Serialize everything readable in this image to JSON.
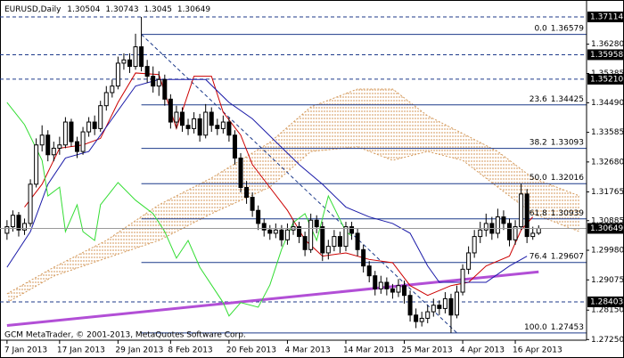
{
  "chart_data": {
    "type": "candlestick",
    "title": "EURUSD,Daily",
    "footer": "GCM MetaTrader, © 2001-2013, MetaQuotes Software Corp.",
    "up_color": "#ffffff",
    "down_color": "#000000",
    "wick_color": "#000000",
    "open": [
      1.305,
      1.307,
      1.3105,
      1.306,
      1.308,
      1.32,
      1.332,
      1.335,
      1.329,
      1.331,
      1.332,
      1.339,
      1.333,
      1.33,
      1.336,
      1.339,
      1.337,
      1.344,
      1.348,
      1.35,
      1.357,
      1.358,
      1.356,
      1.362,
      1.356,
      1.353,
      1.35,
      1.352,
      1.346,
      1.339,
      1.342,
      1.338,
      1.337,
      1.34,
      1.335,
      1.342,
      1.338,
      1.337,
      1.339,
      1.335,
      1.328,
      1.319,
      1.316,
      1.312,
      1.308,
      1.306,
      1.305,
      1.306,
      1.303,
      1.306,
      1.307,
      1.304,
      1.3,
      1.309,
      1.307,
      1.299,
      1.301,
      1.304,
      1.301,
      1.307,
      1.305,
      1.3,
      1.295,
      1.292,
      1.288,
      1.29,
      1.288,
      1.287,
      1.289,
      1.286,
      1.28,
      1.278,
      1.279,
      1.281,
      1.283,
      1.282,
      1.285,
      1.28,
      1.287,
      1.294,
      1.299,
      1.304,
      1.306,
      1.308,
      1.305,
      1.31,
      1.308,
      1.303,
      1.307,
      1.317,
      1.304,
      1.30504
    ],
    "high": [
      1.309,
      1.312,
      1.3115,
      1.3095,
      1.3215,
      1.334,
      1.338,
      1.3365,
      1.333,
      1.3345,
      1.3405,
      1.34,
      1.3345,
      1.3375,
      1.3405,
      1.341,
      1.3455,
      1.35,
      1.352,
      1.359,
      1.36,
      1.36,
      1.366,
      1.37114,
      1.358,
      1.356,
      1.3545,
      1.3535,
      1.3475,
      1.344,
      1.3435,
      1.34,
      1.342,
      1.3415,
      1.3445,
      1.3435,
      1.34,
      1.341,
      1.3405,
      1.3365,
      1.3295,
      1.321,
      1.3175,
      1.3135,
      1.3095,
      1.3075,
      1.308,
      1.3075,
      1.308,
      1.309,
      1.3085,
      1.3055,
      1.311,
      1.3105,
      1.3085,
      1.303,
      1.306,
      1.3055,
      1.3085,
      1.3085,
      1.3065,
      1.3015,
      1.2965,
      1.2935,
      1.292,
      1.2915,
      1.2895,
      1.291,
      1.2905,
      1.2875,
      1.282,
      1.281,
      1.283,
      1.285,
      1.2845,
      1.287,
      1.2865,
      1.289,
      1.2955,
      1.301,
      1.306,
      1.3085,
      1.311,
      1.31,
      1.3125,
      1.312,
      1.3095,
      1.309,
      1.3202,
      1.3185,
      1.307,
      1.30743
    ],
    "low": [
      1.303,
      1.3055,
      1.304,
      1.3045,
      1.307,
      1.319,
      1.33,
      1.327,
      1.327,
      1.329,
      1.331,
      1.3315,
      1.328,
      1.329,
      1.3345,
      1.335,
      1.336,
      1.3425,
      1.3465,
      1.349,
      1.355,
      1.354,
      1.355,
      1.3545,
      1.351,
      1.348,
      1.347,
      1.344,
      1.337,
      1.337,
      1.336,
      1.335,
      1.3355,
      1.333,
      1.334,
      1.336,
      1.335,
      1.3355,
      1.333,
      1.326,
      1.3175,
      1.314,
      1.31,
      1.306,
      1.304,
      1.303,
      1.3035,
      1.301,
      1.3015,
      1.3045,
      1.302,
      1.298,
      1.299,
      1.305,
      1.2965,
      1.297,
      1.2995,
      1.299,
      1.2995,
      1.303,
      1.298,
      1.293,
      1.29,
      1.286,
      1.2865,
      1.286,
      1.285,
      1.2855,
      1.2835,
      1.278,
      1.276,
      1.2765,
      1.2775,
      1.2795,
      1.28,
      1.2805,
      1.27453,
      1.279,
      1.286,
      1.2925,
      1.2975,
      1.302,
      1.304,
      1.303,
      1.3035,
      1.306,
      1.301,
      1.3015,
      1.306,
      1.302,
      1.303,
      1.3045
    ],
    "close": [
      1.307,
      1.3105,
      1.306,
      1.308,
      1.32,
      1.332,
      1.335,
      1.329,
      1.331,
      1.332,
      1.339,
      1.333,
      1.33,
      1.336,
      1.339,
      1.337,
      1.344,
      1.348,
      1.35,
      1.357,
      1.358,
      1.356,
      1.362,
      1.356,
      1.353,
      1.35,
      1.352,
      1.346,
      1.339,
      1.342,
      1.338,
      1.337,
      1.34,
      1.335,
      1.342,
      1.338,
      1.337,
      1.339,
      1.335,
      1.328,
      1.319,
      1.316,
      1.312,
      1.308,
      1.306,
      1.305,
      1.306,
      1.303,
      1.306,
      1.307,
      1.304,
      1.3,
      1.309,
      1.307,
      1.299,
      1.301,
      1.304,
      1.301,
      1.307,
      1.305,
      1.3,
      1.295,
      1.292,
      1.288,
      1.29,
      1.288,
      1.287,
      1.289,
      1.286,
      1.28,
      1.278,
      1.279,
      1.281,
      1.283,
      1.282,
      1.285,
      1.28,
      1.287,
      1.294,
      1.299,
      1.304,
      1.306,
      1.308,
      1.305,
      1.31,
      1.308,
      1.303,
      1.307,
      1.317,
      1.304,
      1.305,
      1.30649
    ],
    "series": [
      {
        "color": "#cc0000",
        "x": [
          3,
          6,
          9,
          13,
          16,
          19,
          22,
          26,
          29,
          32,
          35,
          37,
          40,
          42,
          45,
          48,
          51,
          54,
          58,
          62,
          66,
          69,
          72,
          76,
          79,
          82,
          86,
          88,
          90
        ],
        "values": [
          1.313,
          1.32,
          1.331,
          1.332,
          1.334,
          1.345,
          1.354,
          1.3535,
          1.337,
          1.353,
          1.353,
          1.342,
          1.335,
          1.326,
          1.319,
          1.312,
          1.303,
          1.298,
          1.299,
          1.297,
          1.296,
          1.289,
          1.286,
          1.289,
          1.29,
          1.295,
          1.298,
          1.306,
          1.31
        ]
      },
      {
        "color": "#1a1aa8",
        "x": [
          0,
          4,
          7,
          10,
          14,
          18,
          22,
          26,
          30,
          34,
          38,
          42,
          46,
          50,
          54,
          58,
          62,
          66,
          69,
          72,
          74,
          78,
          82,
          86,
          89
        ],
        "values": [
          1.2946,
          1.3055,
          1.32,
          1.328,
          1.33,
          1.34,
          1.35,
          1.352,
          1.352,
          1.352,
          1.345,
          1.34,
          1.333,
          1.326,
          1.32,
          1.313,
          1.31,
          1.308,
          1.305,
          1.295,
          1.29,
          1.29,
          1.29,
          1.295,
          1.298
        ]
      },
      {
        "color": "#33dd33",
        "x": [
          0,
          3,
          6,
          7,
          9,
          10,
          12,
          13,
          15,
          16,
          19,
          22,
          25,
          27,
          29,
          31,
          33,
          35,
          37,
          38,
          40,
          43,
          45,
          47,
          49,
          51,
          53,
          55,
          58,
          59
        ],
        "values": [
          1.345,
          1.3382,
          1.3273,
          1.3164,
          1.3191,
          1.3055,
          1.3137,
          1.3055,
          1.3028,
          1.3137,
          1.3205,
          1.3151,
          1.311,
          1.3055,
          1.2974,
          1.3028,
          1.2946,
          1.2892,
          1.2838,
          1.2797,
          1.2838,
          1.2824,
          1.2892,
          1.3001,
          1.3083,
          1.311,
          1.3028,
          1.3164,
          1.3055,
          1.3042
        ]
      }
    ],
    "cloud": {
      "color": "#d49a5c",
      "x": [
        0,
        8,
        17,
        26,
        35,
        45,
        52,
        60,
        66,
        72,
        78,
        84,
        90,
        98
      ],
      "span_a": [
        1.2865,
        1.2946,
        1.3028,
        1.3137,
        1.3219,
        1.3328,
        1.3436,
        1.3491,
        1.3491,
        1.3409,
        1.3355,
        1.33,
        1.3219,
        1.3164
      ],
      "span_b": [
        1.2838,
        1.2919,
        1.2974,
        1.3028,
        1.311,
        1.3191,
        1.33,
        1.3314,
        1.3273,
        1.33,
        1.3273,
        1.3191,
        1.311,
        1.3055
      ]
    },
    "trendline": {
      "color": "#b24fd6",
      "x": [
        0,
        91
      ],
      "values": [
        1.2768,
        1.2932
      ]
    },
    "fibo": {
      "color": "#1c3a8a",
      "x": [
        23,
        77
      ],
      "levels": [
        {
          "ratio": "0.0",
          "value": 1.36579
        },
        {
          "ratio": "23.6",
          "value": 1.34425
        },
        {
          "ratio": "38.2",
          "value": 1.33093
        },
        {
          "ratio": "50.0",
          "value": 1.32016
        },
        {
          "ratio": "61.8",
          "value": 1.30939
        },
        {
          "ratio": "76.4",
          "value": 1.29607
        },
        {
          "ratio": "100.0",
          "value": 1.27453
        }
      ]
    },
    "levels_color": "#1c3a8a",
    "levels": [
      1.37114,
      1.35958,
      {
        "value": 1.3521,
        "label": "1.35210"
      },
      1.28403
    ],
    "xlim": [
      -1.2,
      99.2
    ],
    "ylim": [
      1.27231,
      1.37631
    ],
    "xticks": [
      {
        "value": 0,
        "label": "7 Jan 2013"
      },
      {
        "value": 9,
        "label": "17 Jan 2013"
      },
      {
        "value": 19,
        "label": "29 Jan 2013"
      },
      {
        "value": 28,
        "label": "8 Feb 2013"
      },
      {
        "value": 38,
        "label": "20 Feb 2013"
      },
      {
        "value": 48,
        "label": "4 Mar 2013"
      },
      {
        "value": 58,
        "label": "14 Mar 2013"
      },
      {
        "value": 68,
        "label": "25 Mar 2013"
      },
      {
        "value": 78,
        "label": "4 Apr 2013"
      },
      {
        "value": 87,
        "label": "16 Apr 2013"
      }
    ],
    "yticks": [
      {
        "value": 1.3628,
        "label": "1.36280"
      },
      1.35385,
      {
        "value": 1.3449,
        "label": "1.34490"
      },
      1.33585,
      {
        "value": 1.3268,
        "label": "1.32680"
      },
      1.31765,
      1.30885,
      {
        "value": 1.2998,
        "label": "1.29980"
      },
      1.29075,
      {
        "value": 1.2815,
        "label": "1.28150"
      },
      {
        "value": 1.2725,
        "label": "1.27250"
      }
    ],
    "grid": false
  }
}
